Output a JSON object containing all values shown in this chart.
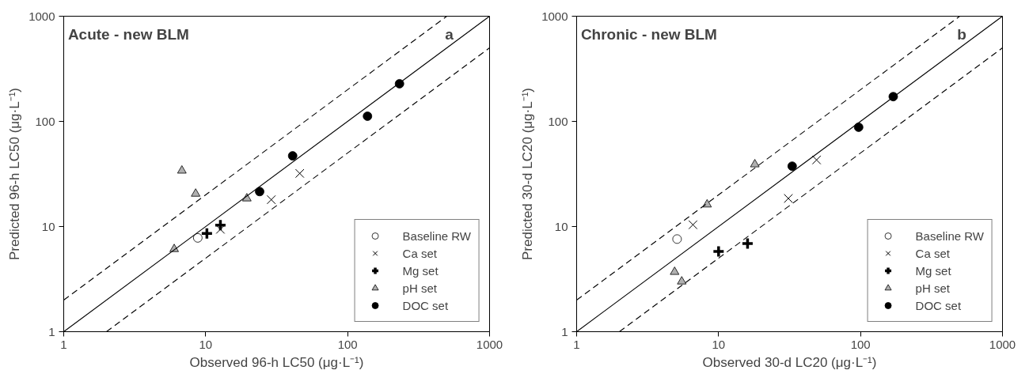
{
  "chart_data": [
    {
      "type": "scatter",
      "title": "Acute - new BLM",
      "xlabel": "Observed 96-h LC50 (μg·L⁻¹)",
      "ylabel": "Predicted 96-h LC50 (μg·L⁻¹)",
      "annotations": [
        "a"
      ],
      "log": "xy",
      "grid": false,
      "legend": "bottom right",
      "xlim": [
        1,
        1000
      ],
      "ylim": [
        1,
        1000
      ],
      "xticks": [
        1,
        10,
        100,
        1000
      ],
      "yticks": [
        1,
        10,
        100,
        1000
      ],
      "series": [
        {
          "name": "Baseline RW",
          "color": "#ffffff",
          "marker": "circle",
          "x": [
            8.8
          ],
          "values": [
            7.8
          ]
        },
        {
          "name": "Ca set",
          "color": "#000000",
          "marker": "cross",
          "x": [
            12.7,
            29,
            46
          ],
          "values": [
            9.4,
            18,
            32
          ]
        },
        {
          "name": "Mg set",
          "color": "#000000",
          "marker": "plus",
          "x": [
            10.2,
            12.7
          ],
          "values": [
            8.6,
            10.3
          ]
        },
        {
          "name": "pH set",
          "color": "#b0b0b0",
          "marker": "triangle",
          "x": [
            6,
            6.8,
            8.5,
            19.5
          ],
          "values": [
            6.1,
            34,
            20.5,
            18.5
          ]
        },
        {
          "name": "DOC set",
          "color": "#000000",
          "marker": "circle",
          "x": [
            24,
            41,
            138,
            232
          ],
          "values": [
            21.5,
            47,
            112,
            228
          ]
        },
        {
          "type": "line",
          "color": "#000000",
          "line_style": "solid",
          "x": [
            1,
            1000
          ],
          "values": [
            1,
            1000
          ]
        },
        {
          "type": "line",
          "color": "#000000",
          "line_style": "dashed",
          "x": [
            1,
            500
          ],
          "values": [
            2,
            1000
          ]
        },
        {
          "type": "line",
          "color": "#000000",
          "line_style": "dashed",
          "x": [
            2,
            1000
          ],
          "values": [
            1,
            500
          ]
        }
      ]
    },
    {
      "type": "scatter",
      "title": "Chronic - new BLM",
      "xlabel": "Observed 30-d LC20 (μg·L⁻¹)",
      "ylabel": "Predicted 30-d LC20 (μg·L⁻¹)",
      "annotations": [
        "b"
      ],
      "log": "xy",
      "grid": false,
      "legend": "bottom right",
      "xlim": [
        1,
        1000
      ],
      "ylim": [
        1,
        1000
      ],
      "xticks": [
        1,
        10,
        100,
        1000
      ],
      "yticks": [
        1,
        10,
        100,
        1000
      ],
      "series": [
        {
          "name": "Baseline RW",
          "color": "#ffffff",
          "marker": "circle",
          "x": [
            5.1
          ],
          "values": [
            7.6
          ]
        },
        {
          "name": "Ca set",
          "color": "#000000",
          "marker": "cross",
          "x": [
            6.6,
            31,
            49
          ],
          "values": [
            10.4,
            18.5,
            43
          ]
        },
        {
          "name": "Mg set",
          "color": "#000000",
          "marker": "plus",
          "x": [
            10,
            16
          ],
          "values": [
            5.8,
            6.9
          ]
        },
        {
          "name": "pH set",
          "color": "#b0b0b0",
          "marker": "triangle",
          "x": [
            4.9,
            5.5,
            8.3,
            18
          ],
          "values": [
            3.7,
            3.0,
            16.2,
            39
          ]
        },
        {
          "name": "DOC set",
          "color": "#000000",
          "marker": "circle",
          "x": [
            33,
            97,
            170
          ],
          "values": [
            37.5,
            88,
            172
          ]
        },
        {
          "type": "line",
          "color": "#000000",
          "line_style": "solid",
          "x": [
            1,
            1000
          ],
          "values": [
            1,
            1000
          ]
        },
        {
          "type": "line",
          "color": "#000000",
          "line_style": "dashed",
          "x": [
            1,
            500
          ],
          "values": [
            2,
            1000
          ]
        },
        {
          "type": "line",
          "color": "#000000",
          "line_style": "dashed",
          "x": [
            2,
            1000
          ],
          "values": [
            1,
            500
          ]
        }
      ]
    }
  ]
}
